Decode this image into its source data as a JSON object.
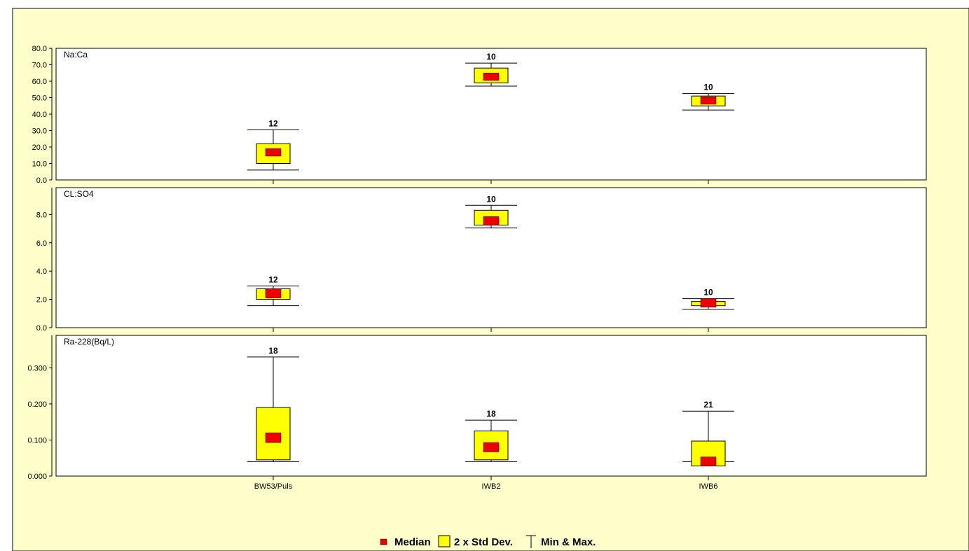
{
  "chart_data": {
    "type": "boxplot",
    "categories": [
      "BW53/Puls",
      "IWB2",
      "IWB6"
    ],
    "panels": [
      {
        "title": "Na:Ca",
        "ylim": [
          0,
          80
        ],
        "yticks": [
          "0.0",
          "10.0",
          "20.0",
          "30.0",
          "40.0",
          "50.0",
          "60.0",
          "70.0",
          "80.0"
        ],
        "ytick_values": [
          0,
          10,
          20,
          30,
          40,
          50,
          60,
          70,
          80
        ],
        "groups": [
          {
            "category": "BW53/Puls",
            "count": "12",
            "min": 6,
            "max": 30.5,
            "std_low": 10,
            "std_high": 22,
            "median_low": 14.5,
            "median_high": 19
          },
          {
            "category": "IWB2",
            "count": "10",
            "min": 57,
            "max": 71,
            "std_low": 59,
            "std_high": 68,
            "median_low": 60.5,
            "median_high": 65
          },
          {
            "category": "IWB6",
            "count": "10",
            "min": 42.5,
            "max": 52.5,
            "std_low": 45,
            "std_high": 51,
            "median_low": 46,
            "median_high": 50.5
          }
        ]
      },
      {
        "title": "CL:SO4",
        "ylim": [
          0,
          9.9
        ],
        "yticks": [
          "0.0",
          "2.0",
          "4.0",
          "6.0",
          "8.0"
        ],
        "ytick_values": [
          0,
          2,
          4,
          6,
          8
        ],
        "groups": [
          {
            "category": "BW53/Puls",
            "count": "12",
            "min": 1.55,
            "max": 2.95,
            "std_low": 2.0,
            "std_high": 2.75,
            "median_low": 2.1,
            "median_high": 2.75
          },
          {
            "category": "IWB2",
            "count": "10",
            "min": 7.05,
            "max": 8.65,
            "std_low": 7.25,
            "std_high": 8.3,
            "median_low": 7.25,
            "median_high": 7.85
          },
          {
            "category": "IWB6",
            "count": "10",
            "min": 1.3,
            "max": 2.05,
            "std_low": 1.55,
            "std_high": 1.85,
            "median_low": 1.45,
            "median_high": 2.05
          }
        ]
      },
      {
        "title": "Ra-228(Bq/L)",
        "ylim": [
          0,
          0.39
        ],
        "yticks": [
          "0.000",
          "0.100",
          "0.200",
          "0.300"
        ],
        "ytick_values": [
          0,
          0.1,
          0.2,
          0.3
        ],
        "groups": [
          {
            "category": "BW53/Puls",
            "count": "18",
            "min": 0.04,
            "max": 0.33,
            "std_low": 0.045,
            "std_high": 0.19,
            "median_low": 0.093,
            "median_high": 0.12
          },
          {
            "category": "IWB2",
            "count": "18",
            "min": 0.04,
            "max": 0.155,
            "std_low": 0.045,
            "std_high": 0.125,
            "median_low": 0.067,
            "median_high": 0.093
          },
          {
            "category": "IWB6",
            "count": "21",
            "min": 0.04,
            "max": 0.18,
            "std_low": 0.028,
            "std_high": 0.097,
            "median_low": 0.028,
            "median_high": 0.053
          }
        ]
      }
    ],
    "legend": {
      "position": "bottom-center",
      "median": "Median",
      "std": "2 x Std Dev.",
      "minmax": "Min & Max."
    }
  },
  "colors": {
    "background": "#ffffcc",
    "panel": "#ffffff",
    "std_box": "#ffff00",
    "median_box": "#ee0000",
    "line": "#000000"
  }
}
